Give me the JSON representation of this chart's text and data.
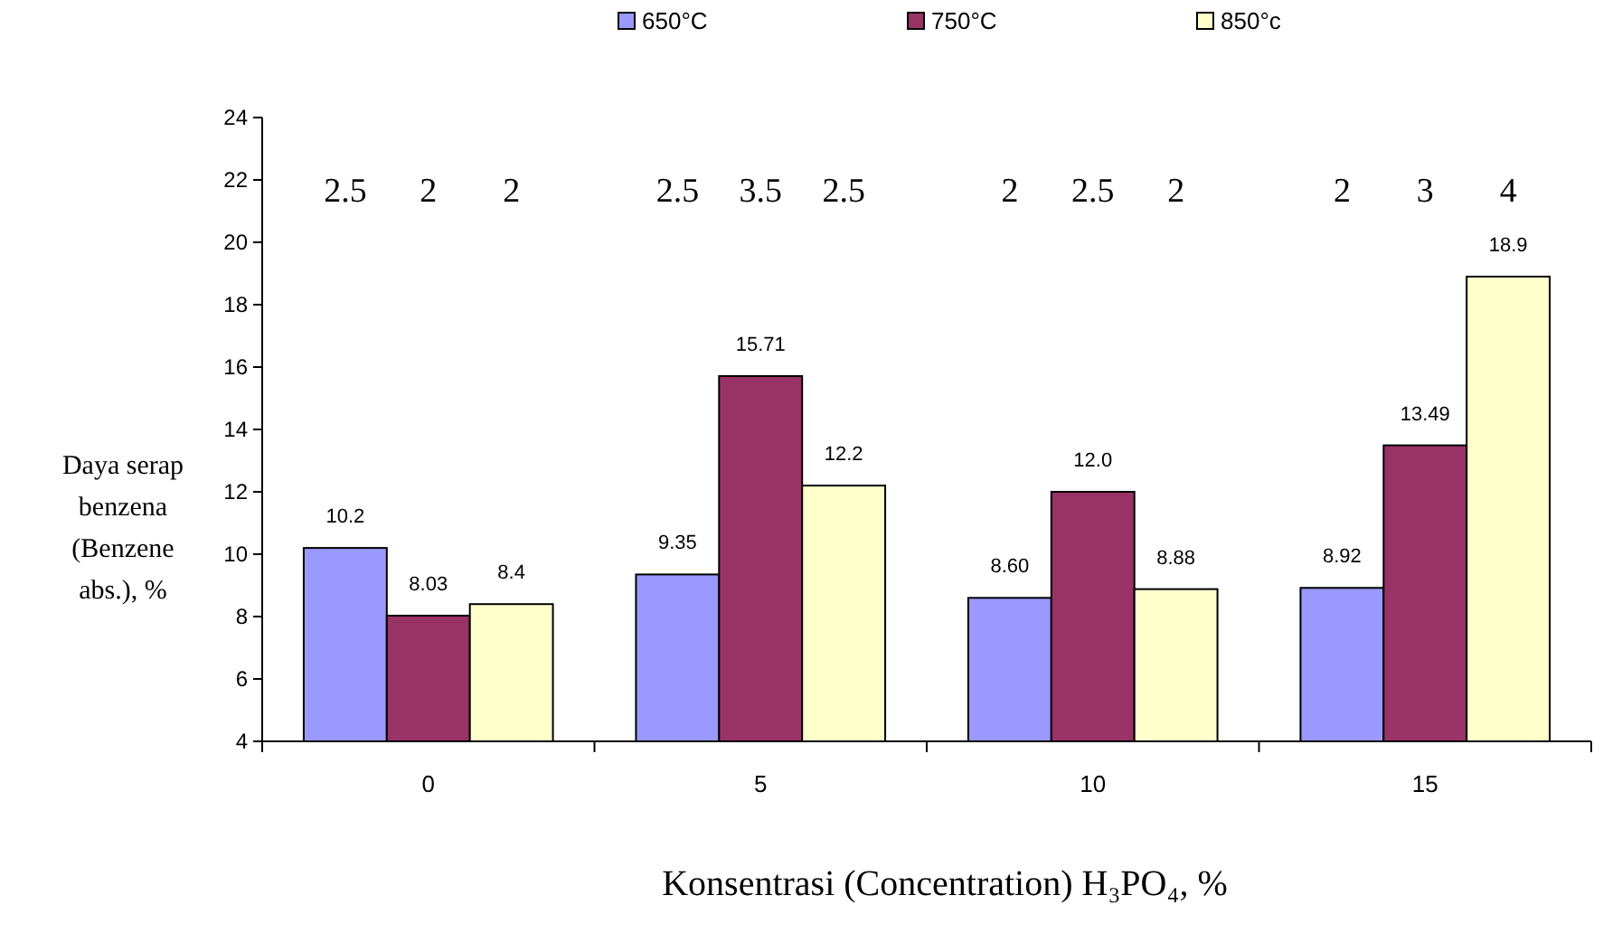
{
  "chart_data": {
    "type": "bar",
    "xlabel": "Konsentrasi (Concentration) H₃PO₄,  %",
    "ylabel": "Daya serap benzena (Benzene abs.), %",
    "categories": [
      "0",
      "5",
      "10",
      "15"
    ],
    "series": [
      {
        "name": "650°C",
        "color": "#9999ff",
        "values": [
          10.2,
          9.35,
          8.6,
          8.92
        ],
        "value_labels": [
          "10.2",
          "9.35",
          "8.60",
          "8.92"
        ]
      },
      {
        "name": "750°C",
        "color": "#993366",
        "values": [
          8.03,
          15.71,
          12.0,
          13.49
        ],
        "value_labels": [
          "8.03",
          "15.71",
          "12.0",
          "13.49"
        ]
      },
      {
        "name": "850°c",
        "color": "#ffffcc",
        "values": [
          8.4,
          12.2,
          8.88,
          18.9
        ],
        "value_labels": [
          "8.4",
          "12.2",
          "8.88",
          "18.9"
        ]
      }
    ],
    "ylim": [
      4,
      24
    ],
    "yticks": [
      4,
      6,
      8,
      10,
      12,
      14,
      16,
      18,
      20,
      22,
      24
    ],
    "grid": false,
    "legend": "top",
    "annotations": [
      "2.5",
      "2",
      "2",
      "2.5",
      "3.5",
      "2.5",
      "2",
      "2.5",
      "2",
      "2",
      "3",
      "4"
    ]
  }
}
